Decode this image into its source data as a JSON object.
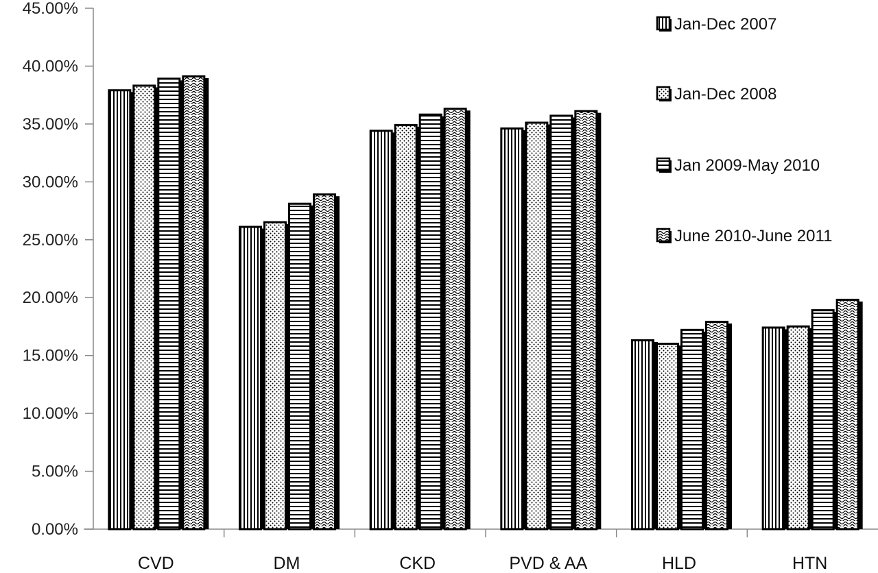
{
  "chart_data": {
    "type": "bar",
    "title": "",
    "xlabel": "",
    "ylabel": "",
    "ylim": [
      0,
      45
    ],
    "yticks": [
      "0.00%",
      "5.00%",
      "10.00%",
      "15.00%",
      "20.00%",
      "25.00%",
      "30.00%",
      "35.00%",
      "40.00%",
      "45.00%"
    ],
    "categories": [
      "CVD",
      "DM",
      "CKD",
      "PVD & AA",
      "HLD",
      "HTN"
    ],
    "legend_position": "top-right",
    "grid": false,
    "series": [
      {
        "name": "Jan-Dec 2007",
        "pattern": "vertical-lines",
        "values": [
          38.0,
          26.2,
          34.5,
          34.7,
          16.4,
          17.5
        ]
      },
      {
        "name": "Jan-Dec 2008",
        "pattern": "dots",
        "values": [
          38.4,
          26.6,
          35.0,
          35.2,
          16.1,
          17.6
        ]
      },
      {
        "name": "Jan 2009-May 2010",
        "pattern": "horizontal-lines",
        "values": [
          39.0,
          28.2,
          35.9,
          35.8,
          17.3,
          19.0
        ]
      },
      {
        "name": "June 2010-June 2011",
        "pattern": "waves",
        "values": [
          39.2,
          29.0,
          36.4,
          36.2,
          18.0,
          19.9
        ]
      }
    ]
  }
}
